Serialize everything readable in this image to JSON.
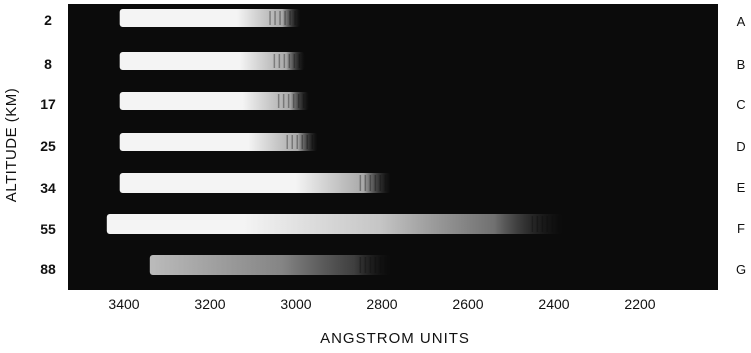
{
  "figure": {
    "y_axis_label": "ALTITUDE (KM)",
    "x_axis_label": "ANGSTROM UNITS",
    "x_ticks": [
      "3400",
      "3200",
      "3000",
      "2800",
      "2600",
      "2400",
      "2200"
    ],
    "rows": [
      {
        "altitude": "2",
        "letter": "A",
        "shortest_wavelength": 2990
      },
      {
        "altitude": "8",
        "letter": "B",
        "shortest_wavelength": 2980
      },
      {
        "altitude": "17",
        "letter": "C",
        "shortest_wavelength": 2970
      },
      {
        "altitude": "25",
        "letter": "D",
        "shortest_wavelength": 2950
      },
      {
        "altitude": "34",
        "letter": "E",
        "shortest_wavelength": 2780
      },
      {
        "altitude": "55",
        "letter": "F",
        "shortest_wavelength": 2380
      },
      {
        "altitude": "88",
        "letter": "G",
        "shortest_wavelength": 2780
      }
    ],
    "colors": {
      "plate": "#0b0b0b",
      "spectrum": "#f4f4f4",
      "background": "#ffffff"
    }
  }
}
